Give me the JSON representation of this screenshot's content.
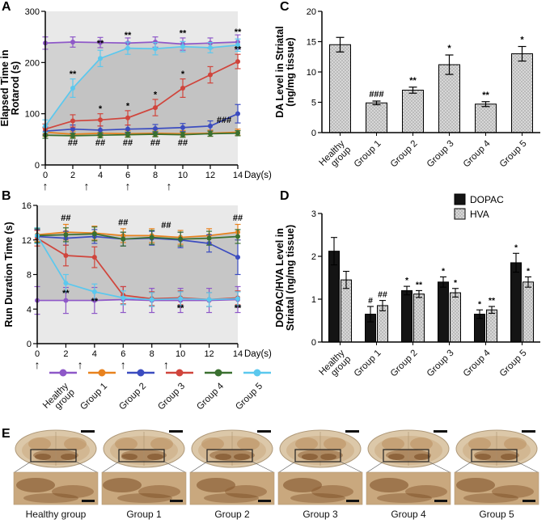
{
  "figure": {
    "bg": "#ffffff"
  },
  "panels": {
    "A": {
      "label": "A"
    },
    "B": {
      "label": "B"
    },
    "C": {
      "label": "C"
    },
    "D": {
      "label": "D"
    },
    "E": {
      "label": "E",
      "items": [
        {
          "label": "Healthy group"
        },
        {
          "label": "Group 1"
        },
        {
          "label": "Group 2"
        },
        {
          "label": "Group 3"
        },
        {
          "label": "Group 4"
        },
        {
          "label": "Group 5"
        }
      ]
    }
  },
  "group_legend": [
    {
      "label": "Healthy\ngroup",
      "color": "#8E58C8"
    },
    {
      "label": "Group 1",
      "color": "#E8821E"
    },
    {
      "label": "Group 2",
      "color": "#3B4CC0"
    },
    {
      "label": "Group 3",
      "color": "#D0453C"
    },
    {
      "label": "Group 4",
      "color": "#3A7030"
    },
    {
      "label": "Group 5",
      "color": "#5BC8EE"
    }
  ],
  "chart_data": [
    {
      "id": "A",
      "type": "line",
      "title": "",
      "xlabel": "Day(s)",
      "ylabel_lines": [
        "Elapsed Time in",
        "Rotarod (s)"
      ],
      "xlim": [
        0,
        14
      ],
      "ylim": [
        0,
        300
      ],
      "xticks": [
        0,
        2,
        4,
        6,
        8,
        10,
        12,
        14
      ],
      "yticks": [
        0,
        100,
        200,
        300
      ],
      "x": [
        0,
        2,
        4,
        6,
        8,
        10,
        12,
        14
      ],
      "plot_bg": "#e9e9e9",
      "series": [
        {
          "name": "Healthy group",
          "color": "#8E58C8",
          "values": [
            238,
            240,
            239,
            238,
            240,
            236,
            238,
            240
          ],
          "err": [
            12,
            10,
            10,
            10,
            10,
            12,
            10,
            14
          ]
        },
        {
          "name": "Group 1",
          "color": "#E8821E",
          "values": [
            64,
            60,
            62,
            61,
            62,
            61,
            62,
            64
          ],
          "err": [
            8,
            6,
            6,
            6,
            6,
            6,
            6,
            6
          ]
        },
        {
          "name": "Group 2",
          "color": "#3B4CC0",
          "values": [
            66,
            70,
            68,
            70,
            71,
            73,
            76,
            100
          ],
          "err": [
            8,
            8,
            8,
            8,
            8,
            8,
            10,
            18
          ]
        },
        {
          "name": "Group 3",
          "color": "#D0453C",
          "values": [
            70,
            86,
            88,
            92,
            112,
            150,
            176,
            202
          ],
          "err": [
            10,
            12,
            12,
            14,
            16,
            18,
            16,
            14
          ]
        },
        {
          "name": "Group 4",
          "color": "#3A7030",
          "values": [
            58,
            57,
            58,
            59,
            60,
            59,
            61,
            62
          ],
          "err": [
            6,
            5,
            5,
            5,
            5,
            5,
            5,
            5
          ]
        },
        {
          "name": "Group 5",
          "color": "#5BC8EE",
          "values": [
            76,
            150,
            208,
            228,
            227,
            231,
            229,
            234
          ],
          "err": [
            12,
            18,
            16,
            12,
            12,
            10,
            10,
            12
          ]
        }
      ],
      "bands": [
        {
          "upper": "Healthy group",
          "lower": "Group 4",
          "color": "#d2d2d2"
        },
        {
          "upper": "Group 5",
          "lower": "Group 4",
          "color": "#c3c3c3"
        }
      ],
      "annotations": [
        {
          "x": 2,
          "y": 172,
          "text": "**"
        },
        {
          "x": 4,
          "y": 232,
          "text": "**"
        },
        {
          "x": 6,
          "y": 248,
          "text": "**"
        },
        {
          "x": 10,
          "y": 252,
          "text": "**"
        },
        {
          "x": 14,
          "y": 254,
          "text": "**"
        },
        {
          "x": 4,
          "y": 104,
          "text": "*"
        },
        {
          "x": 6,
          "y": 110,
          "text": "*"
        },
        {
          "x": 8,
          "y": 132,
          "text": "*"
        },
        {
          "x": 10,
          "y": 172,
          "text": "*"
        },
        {
          "x": 14,
          "y": 220,
          "text": "**"
        },
        {
          "x": 2,
          "y": 38,
          "text": "##"
        },
        {
          "x": 4,
          "y": 38,
          "text": "##"
        },
        {
          "x": 6,
          "y": 38,
          "text": "##"
        },
        {
          "x": 8,
          "y": 38,
          "text": "##"
        },
        {
          "x": 10,
          "y": 38,
          "text": "##"
        },
        {
          "x": 13,
          "y": 82,
          "text": "###"
        }
      ],
      "arrows": [
        0,
        3,
        6,
        9
      ]
    },
    {
      "id": "B",
      "type": "line",
      "title": "",
      "xlabel": "Day(s)",
      "ylabel_lines": [
        "Run Duration Time (s)"
      ],
      "xlim": [
        0,
        14
      ],
      "ylim": [
        0,
        16
      ],
      "xticks": [
        0,
        2,
        4,
        6,
        8,
        10,
        12,
        14
      ],
      "yticks": [
        0,
        4,
        8,
        12,
        16
      ],
      "x": [
        0,
        2,
        4,
        6,
        8,
        10,
        12,
        14
      ],
      "plot_bg": "#e9e9e9",
      "series": [
        {
          "name": "Healthy group",
          "color": "#8E58C8",
          "values": [
            5,
            5,
            5,
            5.1,
            5,
            5,
            5,
            5.1
          ],
          "err": [
            1.6,
            1.5,
            1.5,
            1.5,
            1.4,
            1.4,
            1.4,
            1.5
          ]
        },
        {
          "name": "Group 1",
          "color": "#E8821E",
          "values": [
            12.6,
            12.9,
            12.8,
            12.5,
            12.5,
            12.3,
            12.5,
            12.9
          ],
          "err": [
            0.8,
            0.9,
            0.8,
            0.8,
            0.8,
            0.8,
            0.8,
            0.9
          ]
        },
        {
          "name": "Group 2",
          "color": "#3B4CC0",
          "values": [
            12.4,
            12.2,
            12.4,
            12.1,
            12.2,
            12.0,
            11.6,
            10.0
          ],
          "err": [
            0.8,
            0.8,
            0.8,
            0.8,
            0.8,
            0.9,
            1.0,
            2.0
          ]
        },
        {
          "name": "Group 3",
          "color": "#D0453C",
          "values": [
            12.2,
            10.2,
            10.0,
            5.6,
            5.2,
            5.3,
            5.1,
            5.3
          ],
          "err": [
            0.9,
            1.2,
            1.2,
            1.0,
            0.8,
            0.8,
            0.8,
            0.8
          ]
        },
        {
          "name": "Group 4",
          "color": "#3A7030",
          "values": [
            12.5,
            12.6,
            12.7,
            12.1,
            12.3,
            12.1,
            12.2,
            12.4
          ],
          "err": [
            0.8,
            0.8,
            0.8,
            0.8,
            0.8,
            0.8,
            0.8,
            0.8
          ]
        },
        {
          "name": "Group 5",
          "color": "#5BC8EE",
          "values": [
            12.5,
            7.0,
            6.0,
            5.3,
            5.1,
            5.2,
            5.1,
            5.2
          ],
          "err": [
            0.9,
            1.0,
            0.9,
            0.8,
            0.8,
            0.8,
            0.8,
            0.8
          ]
        }
      ],
      "bands": [
        {
          "upper": "Group 1",
          "lower": "Healthy group",
          "color": "#c6c6c6"
        }
      ],
      "annotations": [
        {
          "x": 2,
          "y": 14.2,
          "text": "##"
        },
        {
          "x": 6,
          "y": 13.7,
          "text": "##"
        },
        {
          "x": 9,
          "y": 13.4,
          "text": "##"
        },
        {
          "x": 14,
          "y": 14.2,
          "text": "##"
        },
        {
          "x": 2,
          "y": 5.5,
          "text": "**"
        },
        {
          "x": 4,
          "y": 4.6,
          "text": "**"
        },
        {
          "x": 10,
          "y": 3.8,
          "text": "**"
        },
        {
          "x": 14,
          "y": 3.8,
          "text": "**"
        }
      ],
      "arrows": [
        0,
        3,
        6,
        9
      ]
    },
    {
      "id": "C",
      "type": "bar",
      "title": "",
      "ylabel_lines": [
        "DA Level in Striatal",
        "(ng/mg tissue)"
      ],
      "ylim": [
        0,
        20
      ],
      "yticks": [
        0,
        5,
        10,
        15,
        20
      ],
      "categories": [
        "Healthy\ngroup",
        "Group 1",
        "Group 2",
        "Group 3",
        "Group 4",
        "Group 5"
      ],
      "values": [
        14.5,
        4.9,
        7.0,
        11.2,
        4.7,
        13.0
      ],
      "errors": [
        1.2,
        0.3,
        0.5,
        1.6,
        0.4,
        1.2
      ],
      "sig": [
        "",
        "###",
        "**",
        "*",
        "**",
        "*"
      ],
      "bar_color": "#d9d9d9"
    },
    {
      "id": "D",
      "type": "grouped-bar",
      "title": "",
      "ylabel_lines": [
        "DOPAC/HVA Level in",
        "Striatal (ng/mg tissue)"
      ],
      "ylim": [
        0,
        3
      ],
      "yticks": [
        0,
        1,
        2,
        3
      ],
      "categories": [
        "Healthy\ngroup",
        "Group 1",
        "Group 2",
        "Group 3",
        "Group 4",
        "Group 5"
      ],
      "legend": [
        "DOPAC",
        "HVA"
      ],
      "series": [
        {
          "name": "DOPAC",
          "color": "#141414",
          "pattern": false,
          "values": [
            2.12,
            0.65,
            1.2,
            1.4,
            0.65,
            1.85
          ],
          "errors": [
            0.32,
            0.18,
            0.1,
            0.12,
            0.1,
            0.22
          ],
          "sig": [
            "",
            "#",
            "*",
            "*",
            "*",
            "*"
          ]
        },
        {
          "name": "HVA",
          "color": "#cccccc",
          "pattern": true,
          "values": [
            1.45,
            0.85,
            1.12,
            1.15,
            0.75,
            1.4
          ],
          "errors": [
            0.2,
            0.12,
            0.08,
            0.1,
            0.08,
            0.12
          ],
          "sig": [
            "",
            "##",
            "**",
            "*",
            "**",
            "*"
          ]
        }
      ]
    }
  ]
}
